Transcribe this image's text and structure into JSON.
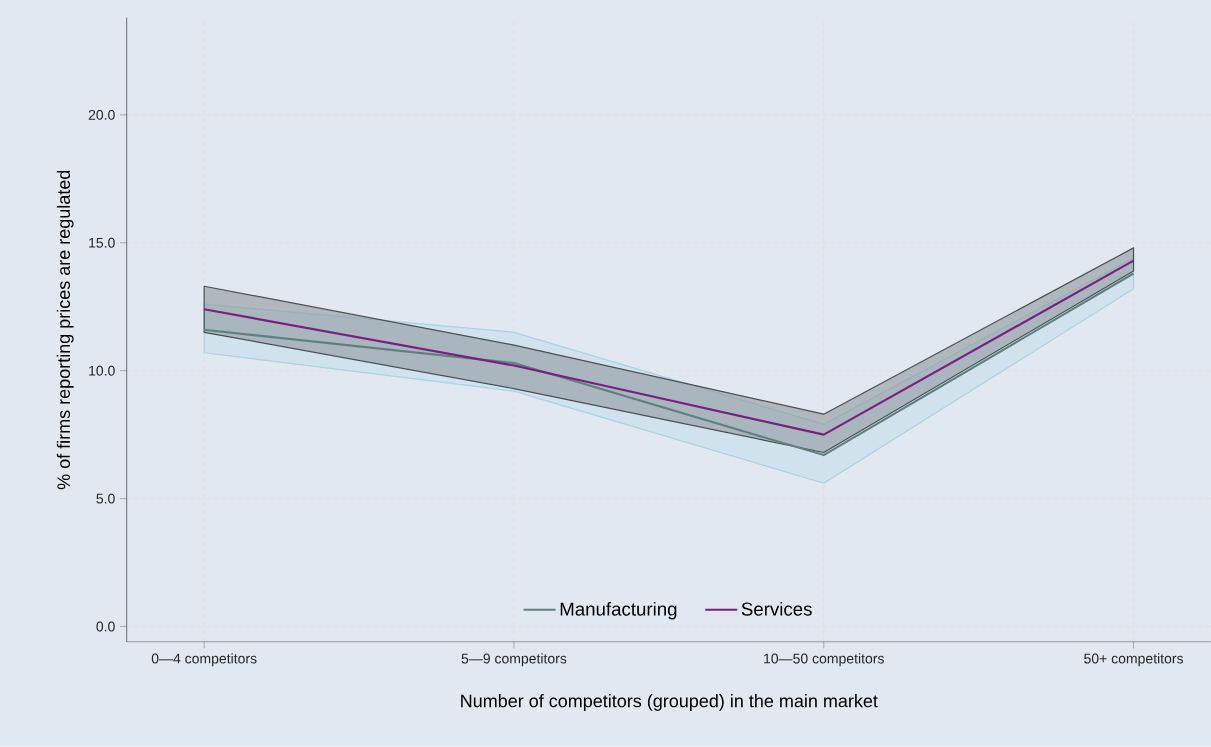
{
  "chart_data": {
    "type": "line",
    "xlabel": "Number of competitors (grouped) in the main market",
    "ylabel": "% of firms reporting prices are regulated",
    "categories": [
      "0—4 competitors",
      "5—9 competitors",
      "10—50 competitors",
      "50+ competitors"
    ],
    "series": [
      {
        "name": "Manufacturing",
        "color": "#5f817c",
        "values": [
          11.6,
          10.3,
          6.7,
          13.8
        ],
        "lower": [
          10.7,
          9.2,
          5.6,
          13.2
        ],
        "upper": [
          12.6,
          11.5,
          7.9,
          14.4
        ]
      },
      {
        "name": "Services",
        "color": "#7b1f7f",
        "values": [
          12.4,
          10.2,
          7.5,
          14.3
        ],
        "lower": [
          11.5,
          9.3,
          6.8,
          13.9
        ],
        "upper": [
          13.3,
          11.0,
          8.3,
          14.8
        ]
      }
    ],
    "ylim": [
      -0.6,
      23.8
    ],
    "yticks": [
      {
        "value": 0,
        "label": "0.0"
      },
      {
        "value": 5,
        "label": "5.0"
      },
      {
        "value": 10,
        "label": "10.0"
      },
      {
        "value": 15,
        "label": "15.0"
      },
      {
        "value": 20,
        "label": "20.0"
      }
    ],
    "grid": true,
    "legend": "bottom",
    "line_style": "solid",
    "marker": "none"
  }
}
